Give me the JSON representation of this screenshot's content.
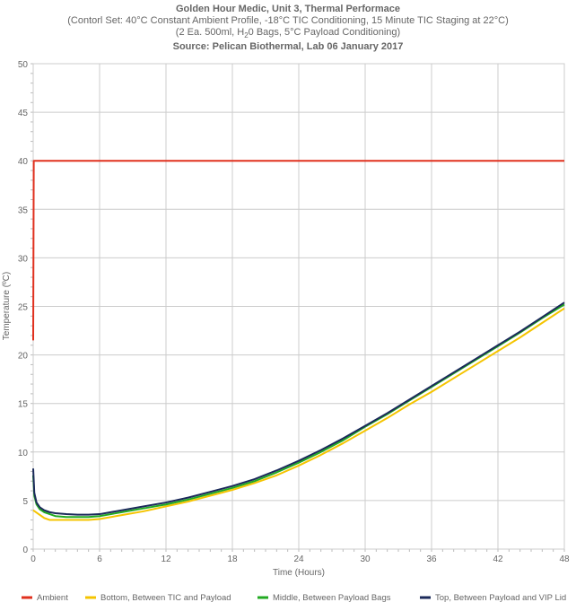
{
  "titles": {
    "line1": "Golden Hour Medic, Unit 3, Thermal Performace",
    "line2": "(Contorl Set: 40°C Constant Ambient Profile, -18°C TIC Conditioning, 15 Minute TIC Staging at 22°C)",
    "line3_a": "(2 Ea. 500ml, H",
    "line3_sub": "2",
    "line3_b": "0 Bags, 5°C Payload Conditioning)",
    "line4": "Source: Pelican Biothermal, Lab 06 January 2017"
  },
  "chart_data": {
    "type": "line",
    "title": "Golden Hour Medic, Unit 3, Thermal Performace",
    "xlabel": "Time (Hours)",
    "ylabel": "Temperature (ºC)",
    "xlim": [
      0,
      48
    ],
    "ylim": [
      0,
      50
    ],
    "xticks": [
      0,
      6,
      12,
      18,
      24,
      30,
      36,
      42,
      48
    ],
    "yticks": [
      0,
      5,
      10,
      15,
      20,
      25,
      30,
      35,
      40,
      45,
      50
    ],
    "grid": true,
    "legend_position": "bottom",
    "series": [
      {
        "name": "Ambient",
        "color": "#e0301e",
        "points": [
          [
            0,
            21.5
          ],
          [
            0.05,
            40
          ],
          [
            48,
            40
          ]
        ]
      },
      {
        "name": "Bottom, Between TIC and Payload",
        "color": "#f5c400",
        "points": [
          [
            0,
            4.0
          ],
          [
            0.5,
            3.6
          ],
          [
            1,
            3.2
          ],
          [
            1.5,
            3.0
          ],
          [
            2,
            3.0
          ],
          [
            3,
            3.0
          ],
          [
            4,
            3.0
          ],
          [
            5,
            3.0
          ],
          [
            6,
            3.1
          ],
          [
            8,
            3.5
          ],
          [
            10,
            3.9
          ],
          [
            12,
            4.4
          ],
          [
            14,
            4.9
          ],
          [
            16,
            5.5
          ],
          [
            18,
            6.1
          ],
          [
            20,
            6.8
          ],
          [
            22,
            7.6
          ],
          [
            24,
            8.6
          ],
          [
            26,
            9.7
          ],
          [
            28,
            10.9
          ],
          [
            30,
            12.2
          ],
          [
            32,
            13.5
          ],
          [
            34,
            14.9
          ],
          [
            36,
            16.2
          ],
          [
            38,
            17.6
          ],
          [
            40,
            19.0
          ],
          [
            42,
            20.4
          ],
          [
            44,
            21.8
          ],
          [
            46,
            23.3
          ],
          [
            48,
            24.8
          ]
        ]
      },
      {
        "name": "Middle, Between Payload Bags",
        "color": "#22aa22",
        "points": [
          [
            0,
            7.6
          ],
          [
            0.1,
            5.5
          ],
          [
            0.3,
            4.6
          ],
          [
            0.6,
            4.1
          ],
          [
            1,
            3.8
          ],
          [
            1.5,
            3.6
          ],
          [
            2,
            3.4
          ],
          [
            3,
            3.3
          ],
          [
            4,
            3.3
          ],
          [
            5,
            3.3
          ],
          [
            6,
            3.4
          ],
          [
            8,
            3.8
          ],
          [
            10,
            4.2
          ],
          [
            12,
            4.6
          ],
          [
            14,
            5.1
          ],
          [
            16,
            5.7
          ],
          [
            18,
            6.3
          ],
          [
            20,
            7.0
          ],
          [
            22,
            7.9
          ],
          [
            24,
            8.9
          ],
          [
            26,
            10.0
          ],
          [
            28,
            11.2
          ],
          [
            30,
            12.6
          ],
          [
            32,
            13.9
          ],
          [
            34,
            15.3
          ],
          [
            36,
            16.7
          ],
          [
            38,
            18.1
          ],
          [
            40,
            19.5
          ],
          [
            42,
            20.9
          ],
          [
            44,
            22.3
          ],
          [
            46,
            23.8
          ],
          [
            48,
            25.2
          ]
        ]
      },
      {
        "name": "Top, Between Payload and VIP Lid",
        "color": "#1b2a5a",
        "points": [
          [
            0,
            8.3
          ],
          [
            0.1,
            5.8
          ],
          [
            0.3,
            4.8
          ],
          [
            0.6,
            4.3
          ],
          [
            1,
            4.0
          ],
          [
            1.5,
            3.8
          ],
          [
            2,
            3.7
          ],
          [
            3,
            3.6
          ],
          [
            4,
            3.55
          ],
          [
            5,
            3.55
          ],
          [
            6,
            3.6
          ],
          [
            8,
            4.0
          ],
          [
            10,
            4.4
          ],
          [
            12,
            4.8
          ],
          [
            14,
            5.3
          ],
          [
            16,
            5.9
          ],
          [
            18,
            6.5
          ],
          [
            20,
            7.2
          ],
          [
            22,
            8.1
          ],
          [
            24,
            9.1
          ],
          [
            26,
            10.2
          ],
          [
            28,
            11.4
          ],
          [
            30,
            12.7
          ],
          [
            32,
            14.0
          ],
          [
            34,
            15.4
          ],
          [
            36,
            16.8
          ],
          [
            38,
            18.2
          ],
          [
            40,
            19.6
          ],
          [
            42,
            21.0
          ],
          [
            44,
            22.4
          ],
          [
            46,
            23.9
          ],
          [
            48,
            25.4
          ]
        ]
      }
    ]
  }
}
